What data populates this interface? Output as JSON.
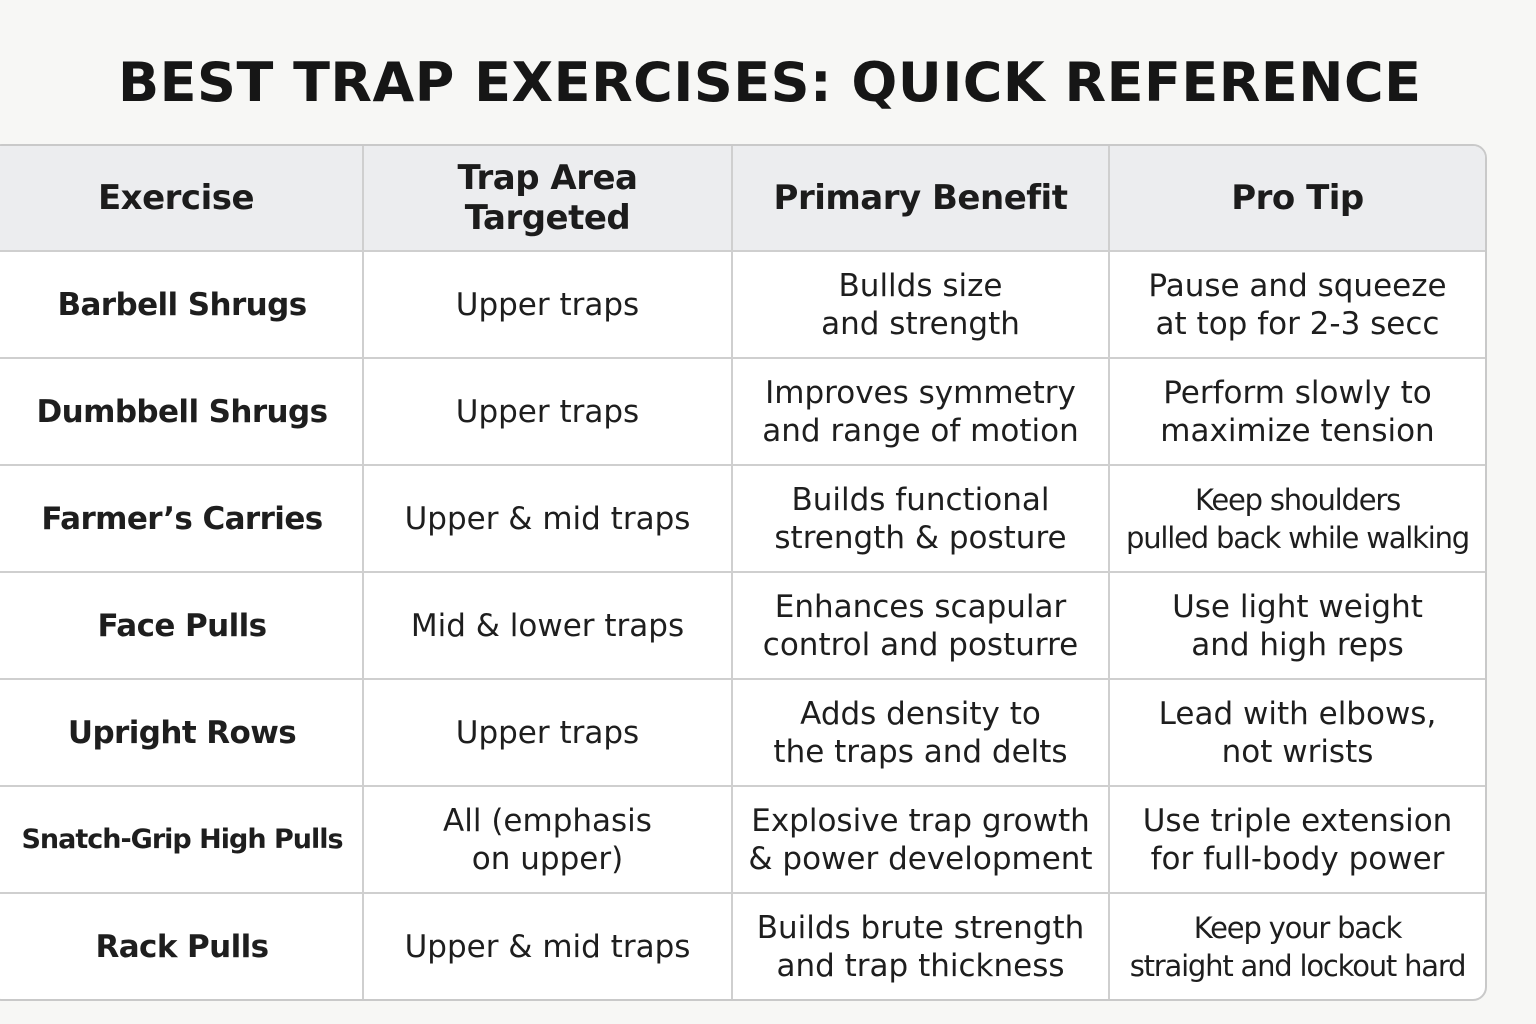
{
  "title": "BEST TRAP EXERCISES: QUICK REFERENCE",
  "table": {
    "headers": [
      "Exercise",
      "Trap Area Targeted",
      "Primary Benefit",
      "Pro Tip"
    ],
    "rows": [
      {
        "exercise": "Barbell Shrugs",
        "area": [
          "Upper traps"
        ],
        "benefit": [
          "Bullds size",
          "and strength"
        ],
        "tip": [
          "Pause and squeeze",
          "at top for 2-3 secc"
        ]
      },
      {
        "exercise": "Dumbbell Shrugs",
        "area": [
          "Upper traps"
        ],
        "benefit": [
          "Improves symmetry",
          "and range of motion"
        ],
        "tip": [
          "Perform slowly to",
          "maximize tension"
        ]
      },
      {
        "exercise": "Farmer’s Carries",
        "area": [
          "Upper & mid traps"
        ],
        "benefit": [
          "Builds functional",
          "strength & posture"
        ],
        "tip": [
          "Keep shoulders",
          "pulled back while walking"
        ]
      },
      {
        "exercise": "Face Pulls",
        "area": [
          "Mid & lower traps"
        ],
        "benefit": [
          "Enhances scapular",
          "control and posturre"
        ],
        "tip": [
          "Use light weight",
          "and high reps"
        ]
      },
      {
        "exercise": "Upright Rows",
        "area": [
          "Upper traps"
        ],
        "benefit": [
          "Adds density to",
          "the traps and delts"
        ],
        "tip": [
          "Lead with elbows,",
          "not wrists"
        ]
      },
      {
        "exercise": "Snatch-Grip High Pulls",
        "area": [
          "All (emphasis",
          "on upper)"
        ],
        "benefit": [
          "Explosive trap growth",
          "& power development"
        ],
        "tip": [
          "Use triple extension",
          "for full-body power"
        ]
      },
      {
        "exercise": "Rack Pulls",
        "area": [
          "Upper & mid traps"
        ],
        "benefit": [
          "Builds brute strength",
          "and trap thickness"
        ],
        "tip": [
          "Keep your back",
          "straight and lockout hard"
        ]
      }
    ]
  }
}
